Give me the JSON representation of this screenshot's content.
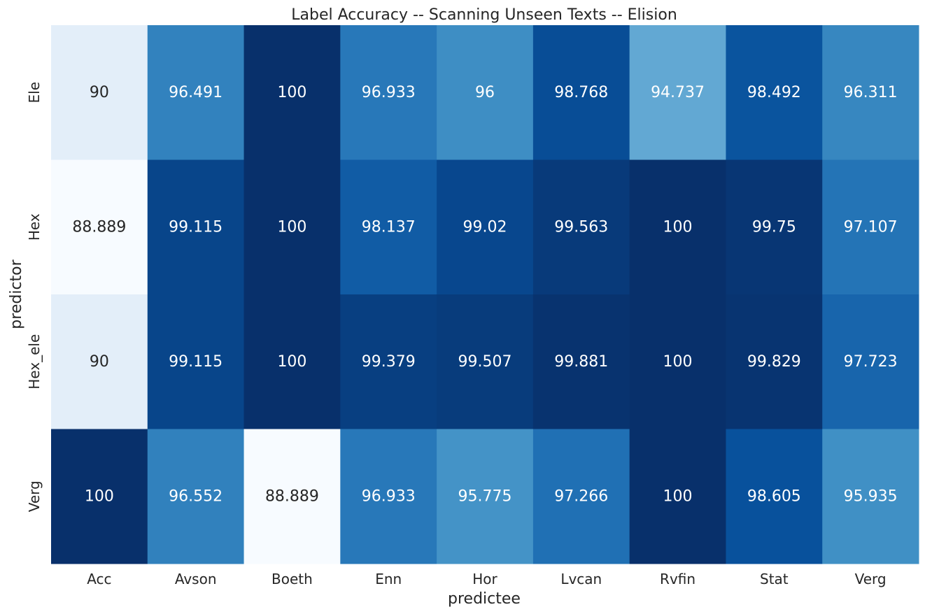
{
  "chart_data": {
    "type": "heatmap",
    "title": "Label Accuracy -- Scanning Unseen Texts -- Elision",
    "xlabel": "predictee",
    "ylabel": "predictor",
    "x_categories": [
      "Acc",
      "Avson",
      "Boeth",
      "Enn",
      "Hor",
      "Lvcan",
      "Rvfin",
      "Stat",
      "Verg"
    ],
    "y_categories": [
      "Ele",
      "Hex",
      "Hex_ele",
      "Verg"
    ],
    "values": [
      [
        90,
        96.491,
        100,
        96.933,
        96,
        98.768,
        94.737,
        98.492,
        96.311
      ],
      [
        88.889,
        99.115,
        100,
        98.137,
        99.02,
        99.563,
        100,
        99.75,
        97.107
      ],
      [
        90,
        99.115,
        100,
        99.379,
        99.507,
        99.881,
        100,
        99.829,
        97.723
      ],
      [
        100,
        96.552,
        88.889,
        96.933,
        95.775,
        97.266,
        100,
        98.605,
        95.935
      ]
    ],
    "value_labels": [
      [
        "90",
        "96.491",
        "100",
        "96.933",
        "96",
        "98.768",
        "94.737",
        "98.492",
        "96.311"
      ],
      [
        "88.889",
        "99.115",
        "100",
        "98.137",
        "99.02",
        "99.563",
        "100",
        "99.75",
        "97.107"
      ],
      [
        "90",
        "99.115",
        "100",
        "99.379",
        "99.507",
        "99.881",
        "100",
        "99.829",
        "97.723"
      ],
      [
        "100",
        "96.552",
        "88.889",
        "96.933",
        "95.775",
        "97.266",
        "100",
        "98.605",
        "95.935"
      ]
    ],
    "colormap": "Blues",
    "color_range": [
      88.889,
      100
    ],
    "colorbar": false,
    "grid": false
  }
}
